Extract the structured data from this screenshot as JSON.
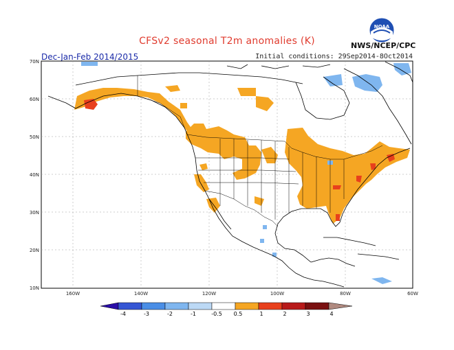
{
  "header": {
    "title": "CFSv2 seasonal T2m anomalies (K)",
    "season": "Dec-Jan-Feb 2014/2015",
    "initial_conditions": "Initial conditions: 29Sep2014-8Oct2014",
    "agency": "NWS/NCEP/CPC",
    "logo_text": "NOAA"
  },
  "axes": {
    "lat_labels": [
      "70N",
      "60N",
      "50N",
      "40N",
      "30N",
      "20N",
      "10N"
    ],
    "lon_labels": [
      "160W",
      "140W",
      "120W",
      "100W",
      "80W",
      "60W"
    ]
  },
  "colorbar": {
    "labels": [
      "-4",
      "-3",
      "-2",
      "-1",
      "-0.5",
      "0.5",
      "1",
      "2",
      "3",
      "4"
    ],
    "colors": [
      "#2a0ea8",
      "#3556d4",
      "#4a8ee6",
      "#7fb6ef",
      "#bcd9f5",
      "#ffffff",
      "#f5a623",
      "#e8401c",
      "#b81a1a",
      "#7a1010",
      "#b08a80"
    ]
  },
  "colors": {
    "warm_1": "#f5a623",
    "warm_2": "#e8401c",
    "cool_1": "#7fb6ef"
  }
}
